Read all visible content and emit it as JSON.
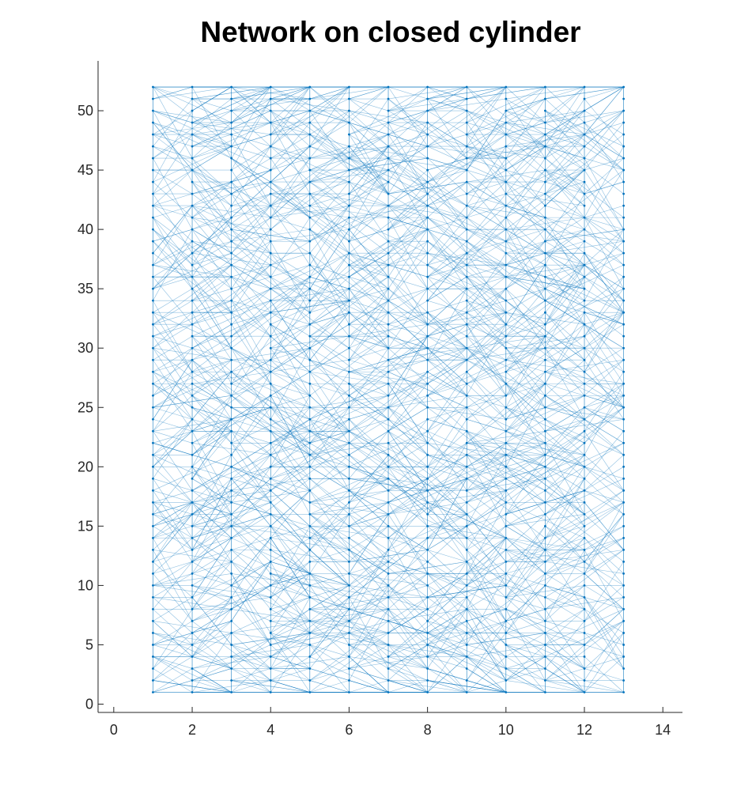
{
  "chart_data": {
    "type": "scatter",
    "title": "Network on closed cylinder",
    "xlabel": "",
    "ylabel": "",
    "xlim": [
      -0.4,
      14.5
    ],
    "ylim": [
      -0.7,
      54.2
    ],
    "xticks": [
      0,
      2,
      4,
      6,
      8,
      10,
      12,
      14
    ],
    "yticks": [
      0,
      5,
      10,
      15,
      20,
      25,
      30,
      35,
      40,
      45,
      50
    ],
    "grid": false,
    "legend": "none",
    "series": [
      {
        "nodes": {
          "x_range": [
            1,
            13
          ],
          "y_range": [
            1,
            52
          ],
          "step": 1
        },
        "edge_color": "#0072BD",
        "marker_color": "#0072BD"
      }
    ]
  }
}
